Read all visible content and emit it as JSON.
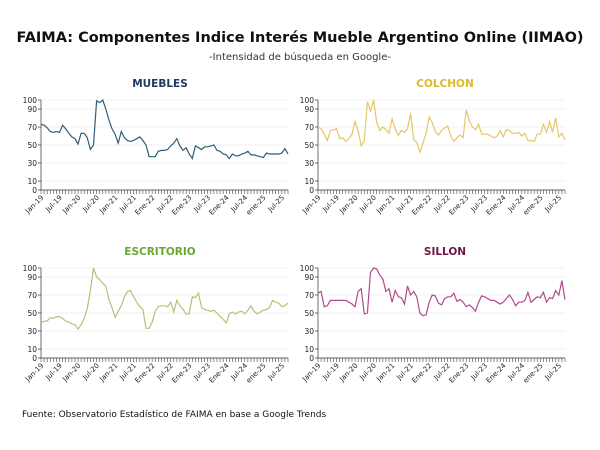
{
  "title": "FAIMA: Componentes Indice Interés Mueble Argentino Online (IIMAO)",
  "subtitle": "-Intensidad de búsqueda en Google-",
  "source": "Fuente: Observatorio Estadístico de FAIMA en base a Google Trends",
  "chart_data": [
    {
      "type": "line",
      "title": "MUEBLES",
      "title_color": "#1f3a5c",
      "line_color": "#2f5d78",
      "ylim": [
        0,
        100
      ],
      "yticks": [
        0,
        10,
        30,
        50,
        70,
        90,
        100
      ],
      "xticklabels": [
        "Jan-19",
        "Jul-19",
        "Jan-20",
        "Jul-20",
        "Jan-21",
        "Jul-21",
        "Ene-22",
        "Jul-22",
        "Ene-23",
        "Jul-23",
        "Ene-24",
        "Jul-24",
        "ene-25",
        "Jul-25"
      ],
      "values": [
        73,
        72,
        69,
        65,
        64,
        65,
        64,
        72,
        68,
        63,
        59,
        57,
        51,
        63,
        63,
        58,
        45,
        50,
        99,
        97,
        100,
        90,
        78,
        68,
        62,
        52,
        65,
        58,
        55,
        54,
        55,
        57,
        59,
        55,
        50,
        37,
        37,
        37,
        43,
        44,
        44,
        45,
        49,
        52,
        57,
        49,
        44,
        47,
        40,
        35,
        49,
        47,
        45,
        48,
        48,
        49,
        50,
        44,
        43,
        40,
        39,
        35,
        40,
        38,
        38,
        40,
        41,
        43,
        39,
        39,
        38,
        37,
        36,
        41,
        40,
        40,
        40,
        40,
        41,
        46,
        40
      ]
    },
    {
      "type": "line",
      "title": "COLCHON",
      "title_color": "#dcb92a",
      "line_color": "#e6c766",
      "ylim": [
        0,
        100
      ],
      "yticks": [
        0,
        10,
        30,
        50,
        70,
        90,
        100
      ],
      "xticklabels": [
        "Jan-19",
        "Jul-19",
        "Jan-20",
        "Jul-20",
        "Jan-21",
        "Jul-21",
        "Ene-22",
        "Jul-22",
        "Ene-23",
        "Jul-23",
        "Ene-24",
        "Jul-24",
        "ene-25",
        "Jul-25"
      ],
      "values": [
        70,
        68,
        62,
        55,
        66,
        67,
        68,
        57,
        58,
        54,
        57,
        62,
        76,
        66,
        49,
        55,
        98,
        88,
        100,
        75,
        66,
        70,
        67,
        63,
        79,
        68,
        61,
        66,
        64,
        68,
        85,
        56,
        53,
        42,
        52,
        63,
        81,
        75,
        65,
        61,
        66,
        69,
        71,
        60,
        54,
        58,
        61,
        58,
        89,
        77,
        70,
        67,
        73,
        62,
        62,
        62,
        60,
        58,
        60,
        66,
        59,
        67,
        66,
        63,
        63,
        64,
        60,
        63,
        55,
        55,
        54,
        62,
        62,
        73,
        64,
        76,
        64,
        80,
        59,
        63,
        56
      ]
    },
    {
      "type": "line",
      "title": "ESCRITORIO",
      "title_color": "#6aa632",
      "line_color": "#b9bf7c",
      "ylim": [
        0,
        100
      ],
      "yticks": [
        0,
        10,
        30,
        50,
        70,
        90,
        100
      ],
      "xticklabels": [
        "Jan-19",
        "Jul-19",
        "Jan-20",
        "Jul-20",
        "Jan-21",
        "Jul-21",
        "Ene-22",
        "Jul-22",
        "Ene-23",
        "Jul-23",
        "Ene-24",
        "Jul-24",
        "ene-25",
        "Jul-25"
      ],
      "values": [
        39,
        41,
        41,
        45,
        44,
        46,
        46,
        44,
        41,
        40,
        38,
        37,
        32,
        37,
        44,
        55,
        75,
        100,
        90,
        87,
        83,
        80,
        65,
        56,
        45,
        52,
        58,
        68,
        74,
        75,
        68,
        62,
        57,
        54,
        33,
        33,
        40,
        52,
        57,
        58,
        58,
        57,
        62,
        51,
        64,
        58,
        54,
        49,
        49,
        68,
        67,
        72,
        56,
        54,
        53,
        52,
        53,
        50,
        46,
        43,
        39,
        49,
        51,
        49,
        51,
        52,
        49,
        53,
        58,
        52,
        49,
        51,
        53,
        54,
        56,
        64,
        62,
        61,
        57,
        58,
        61
      ]
    },
    {
      "type": "line",
      "title": "SILLON",
      "title_color": "#6e1744",
      "line_color": "#b04b8b",
      "ylim": [
        0,
        100
      ],
      "yticks": [
        0,
        10,
        30,
        50,
        70,
        90,
        100
      ],
      "xticklabels": [
        "Jan-19",
        "Jul-19",
        "Jan-20",
        "Jul-20",
        "Jan-21",
        "Jul-21",
        "Ene-22",
        "Jul-22",
        "Ene-23",
        "Jul-23",
        "Ene-24",
        "Jul-24",
        "ene-25",
        "Jul-25"
      ],
      "values": [
        72,
        74,
        57,
        58,
        64,
        64,
        64,
        64,
        64,
        64,
        62,
        60,
        57,
        74,
        77,
        49,
        50,
        95,
        100,
        99,
        92,
        88,
        74,
        77,
        62,
        75,
        68,
        67,
        60,
        80,
        70,
        74,
        68,
        50,
        47,
        48,
        62,
        70,
        69,
        61,
        59,
        66,
        68,
        68,
        72,
        63,
        65,
        62,
        57,
        59,
        56,
        52,
        62,
        69,
        68,
        66,
        64,
        64,
        62,
        60,
        62,
        66,
        70,
        65,
        58,
        62,
        62,
        64,
        73,
        62,
        65,
        68,
        67,
        73,
        62,
        67,
        66,
        75,
        70,
        86,
        65
      ]
    }
  ]
}
